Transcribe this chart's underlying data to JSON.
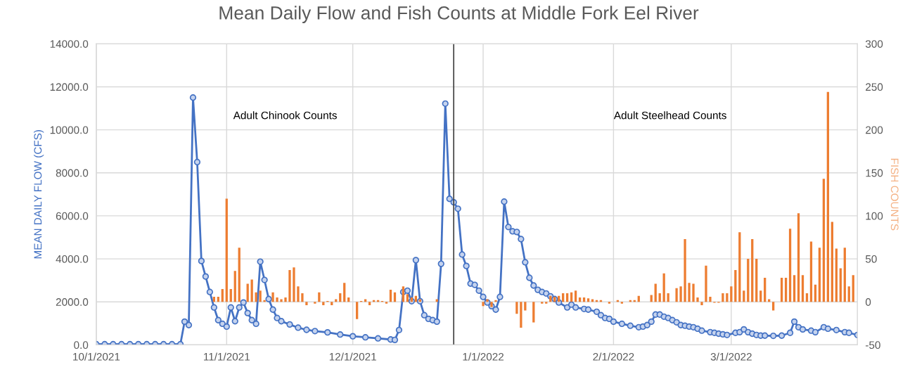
{
  "chart_data": {
    "type": "line",
    "title": "Mean Daily Flow and Fish Counts at Middle Fork Eel River",
    "ylabel": "MEAN DAILY FLOW (CFS)",
    "y2label": "FISH COUNTS",
    "annotations": [
      "Adult Chinook Counts",
      "Adult Steelhead Counts"
    ],
    "xlim": [
      "2021-10-01",
      "2022-03-31"
    ],
    "xticks": [
      {
        "value": "2021-10-01",
        "label": "10/1/2021"
      },
      {
        "value": "2021-11-01",
        "label": "11/1/2021"
      },
      {
        "value": "2021-12-01",
        "label": "12/1/2021"
      },
      {
        "value": "2022-01-01",
        "label": "1/1/2022"
      },
      {
        "value": "2022-02-01",
        "label": "2/1/2022"
      },
      {
        "value": "2022-03-01",
        "label": "3/1/2022"
      }
    ],
    "ylim": [
      0,
      14000
    ],
    "yticks": [
      {
        "value": 0,
        "label": "0.0"
      },
      {
        "value": 2000,
        "label": "2000.0"
      },
      {
        "value": 4000,
        "label": "4000.0"
      },
      {
        "value": 6000,
        "label": "6000.0"
      },
      {
        "value": 8000,
        "label": "8000.0"
      },
      {
        "value": 10000,
        "label": "10000.0"
      },
      {
        "value": 12000,
        "label": "12000.0"
      },
      {
        "value": 14000,
        "label": "14000.0"
      }
    ],
    "y2lim": [
      -50,
      300
    ],
    "y2ticks": [
      -50,
      0,
      50,
      100,
      150,
      200,
      250,
      300
    ],
    "grid": true,
    "marker": "circle",
    "line_style": "solid",
    "ref_lines": [
      {
        "axis": "x",
        "value": "2021-12-25",
        "color": "#404040"
      }
    ],
    "series": [
      {
        "color": "#4472c4",
        "x": [
          "2021-10-01",
          "2021-10-03",
          "2021-10-05",
          "2021-10-07",
          "2021-10-09",
          "2021-10-11",
          "2021-10-13",
          "2021-10-15",
          "2021-10-17",
          "2021-10-19",
          "2021-10-21",
          "2021-10-22",
          "2021-10-23",
          "2021-10-24",
          "2021-10-25",
          "2021-10-26",
          "2021-10-27",
          "2021-10-28",
          "2021-10-29",
          "2021-10-30",
          "2021-10-31",
          "2021-11-01",
          "2021-11-02",
          "2021-11-03",
          "2021-11-04",
          "2021-11-05",
          "2021-11-06",
          "2021-11-07",
          "2021-11-08",
          "2021-11-09",
          "2021-11-10",
          "2021-11-11",
          "2021-11-12",
          "2021-11-13",
          "2021-11-14",
          "2021-11-16",
          "2021-11-18",
          "2021-11-20",
          "2021-11-22",
          "2021-11-25",
          "2021-11-28",
          "2021-12-01",
          "2021-12-04",
          "2021-12-07",
          "2021-12-10",
          "2021-12-11",
          "2021-12-12",
          "2021-12-13",
          "2021-12-14",
          "2021-12-15",
          "2021-12-16",
          "2021-12-17",
          "2021-12-18",
          "2021-12-19",
          "2021-12-20",
          "2021-12-21",
          "2021-12-22",
          "2021-12-23",
          "2021-12-24",
          "2021-12-25",
          "2021-12-26",
          "2021-12-27",
          "2021-12-28",
          "2021-12-29",
          "2021-12-30",
          "2021-12-31",
          "2022-01-01",
          "2022-01-02",
          "2022-01-03",
          "2022-01-04",
          "2022-01-05",
          "2022-01-06",
          "2022-01-07",
          "2022-01-08",
          "2022-01-09",
          "2022-01-10",
          "2022-01-11",
          "2022-01-12",
          "2022-01-13",
          "2022-01-14",
          "2022-01-15",
          "2022-01-16",
          "2022-01-17",
          "2022-01-18",
          "2022-01-19",
          "2022-01-21",
          "2022-01-22",
          "2022-01-23",
          "2022-01-25",
          "2022-01-26",
          "2022-01-28",
          "2022-01-29",
          "2022-01-30",
          "2022-01-31",
          "2022-02-01",
          "2022-02-03",
          "2022-02-05",
          "2022-02-07",
          "2022-02-08",
          "2022-02-09",
          "2022-02-10",
          "2022-02-11",
          "2022-02-12",
          "2022-02-13",
          "2022-02-14",
          "2022-02-15",
          "2022-02-16",
          "2022-02-17",
          "2022-02-18",
          "2022-02-19",
          "2022-02-20",
          "2022-02-21",
          "2022-02-22",
          "2022-02-24",
          "2022-02-25",
          "2022-02-26",
          "2022-02-27",
          "2022-02-28",
          "2022-03-02",
          "2022-03-03",
          "2022-03-04",
          "2022-03-05",
          "2022-03-06",
          "2022-03-07",
          "2022-03-08",
          "2022-03-09",
          "2022-03-11",
          "2022-03-13",
          "2022-03-15",
          "2022-03-16",
          "2022-03-17",
          "2022-03-18",
          "2022-03-20",
          "2022-03-21",
          "2022-03-23",
          "2022-03-24",
          "2022-03-26",
          "2022-03-28",
          "2022-03-29",
          "2022-03-31"
        ],
        "values": [
          30,
          30,
          30,
          30,
          30,
          30,
          30,
          30,
          30,
          30,
          30,
          1080,
          920,
          11500,
          8500,
          3900,
          3180,
          2460,
          1740,
          1150,
          980,
          850,
          1740,
          1100,
          1740,
          1970,
          1480,
          1150,
          980,
          3870,
          3020,
          2130,
          1640,
          1250,
          1100,
          950,
          800,
          700,
          640,
          580,
          480,
          400,
          350,
          300,
          250,
          230,
          690,
          2460,
          2520,
          2030,
          3940,
          2030,
          1380,
          1210,
          1150,
          1080,
          3770,
          11220,
          6790,
          6630,
          6330,
          4200,
          3670,
          2850,
          2790,
          2520,
          2230,
          1970,
          1800,
          1640,
          2230,
          6660,
          5480,
          5280,
          5250,
          4920,
          3840,
          3120,
          2760,
          2560,
          2460,
          2390,
          2260,
          2130,
          1970,
          1740,
          1870,
          1740,
          1670,
          1640,
          1540,
          1380,
          1250,
          1210,
          1080,
          980,
          890,
          820,
          850,
          920,
          1080,
          1410,
          1410,
          1310,
          1250,
          1150,
          1050,
          920,
          890,
          850,
          820,
          750,
          660,
          590,
          560,
          520,
          490,
          460,
          560,
          590,
          720,
          590,
          520,
          460,
          430,
          430,
          420,
          430,
          560,
          1080,
          820,
          720,
          660,
          590,
          820,
          750,
          690,
          590,
          560,
          460
        ]
      },
      {
        "type": "bar",
        "axis": "y2",
        "color": "#ed7d31",
        "x": [
          "2021-10-29",
          "2021-10-30",
          "2021-10-31",
          "2021-11-01",
          "2021-11-02",
          "2021-11-03",
          "2021-11-04",
          "2021-11-06",
          "2021-11-07",
          "2021-11-08",
          "2021-11-09",
          "2021-11-10",
          "2021-11-12",
          "2021-11-13",
          "2021-11-14",
          "2021-11-15",
          "2021-11-16",
          "2021-11-17",
          "2021-11-18",
          "2021-11-19",
          "2021-11-20",
          "2021-11-22",
          "2021-11-23",
          "2021-11-24",
          "2021-11-25",
          "2021-11-26",
          "2021-11-27",
          "2021-11-28",
          "2021-11-29",
          "2021-11-30",
          "2021-12-02",
          "2021-12-03",
          "2021-12-04",
          "2021-12-05",
          "2021-12-06",
          "2021-12-07",
          "2021-12-08",
          "2021-12-09",
          "2021-12-10",
          "2021-12-11",
          "2021-12-13",
          "2021-12-14",
          "2021-12-15",
          "2021-12-16",
          "2021-12-17",
          "2021-12-21",
          "2022-01-01",
          "2022-01-02",
          "2022-01-03",
          "2022-01-04",
          "2022-01-09",
          "2022-01-10",
          "2022-01-11",
          "2022-01-13",
          "2022-01-15",
          "2022-01-16",
          "2022-01-17",
          "2022-01-18",
          "2022-01-19",
          "2022-01-20",
          "2022-01-21",
          "2022-01-22",
          "2022-01-23",
          "2022-01-24",
          "2022-01-25",
          "2022-01-26",
          "2022-01-27",
          "2022-01-28",
          "2022-01-29",
          "2022-01-31",
          "2022-02-02",
          "2022-02-03",
          "2022-02-05",
          "2022-02-06",
          "2022-02-07",
          "2022-02-10",
          "2022-02-11",
          "2022-02-12",
          "2022-02-13",
          "2022-02-14",
          "2022-02-16",
          "2022-02-17",
          "2022-02-18",
          "2022-02-19",
          "2022-02-20",
          "2022-02-21",
          "2022-02-22",
          "2022-02-23",
          "2022-02-24",
          "2022-02-25",
          "2022-02-26",
          "2022-02-27",
          "2022-02-28",
          "2022-03-01",
          "2022-03-02",
          "2022-03-03",
          "2022-03-04",
          "2022-03-05",
          "2022-03-06",
          "2022-03-07",
          "2022-03-08",
          "2022-03-09",
          "2022-03-10",
          "2022-03-11",
          "2022-03-13",
          "2022-03-14",
          "2022-03-15",
          "2022-03-16",
          "2022-03-17",
          "2022-03-18",
          "2022-03-19",
          "2022-03-20",
          "2022-03-21",
          "2022-03-22",
          "2022-03-23",
          "2022-03-24",
          "2022-03-25",
          "2022-03-26",
          "2022-03-27",
          "2022-03-28",
          "2022-03-29",
          "2022-03-30"
        ],
        "values": [
          6,
          6,
          15,
          120,
          15,
          36,
          63,
          21,
          26,
          11,
          13,
          2,
          11,
          5,
          3,
          5,
          37,
          40,
          18,
          10,
          -4,
          -2,
          11,
          -4,
          1,
          -4,
          3,
          10,
          22,
          5,
          -20,
          1,
          3,
          -4,
          2,
          2,
          1,
          -2,
          14,
          11,
          18,
          9,
          5,
          7,
          3,
          3,
          -5,
          3,
          -6,
          2,
          -14,
          -30,
          -10,
          -24,
          -2,
          -2,
          7,
          6,
          7,
          10,
          10,
          11,
          13,
          5,
          5,
          4,
          3,
          2,
          2,
          -2,
          2,
          -2,
          2,
          2,
          7,
          8,
          21,
          10,
          33,
          10,
          16,
          18,
          73,
          22,
          21,
          5,
          -4,
          42,
          6,
          -1,
          -1,
          10,
          10,
          18,
          37,
          81,
          13,
          50,
          73,
          50,
          13,
          28,
          3,
          -10,
          28,
          28,
          85,
          31,
          103,
          31,
          10,
          70,
          20,
          63,
          143,
          244,
          93,
          62,
          39,
          63,
          18,
          31
        ]
      }
    ]
  }
}
